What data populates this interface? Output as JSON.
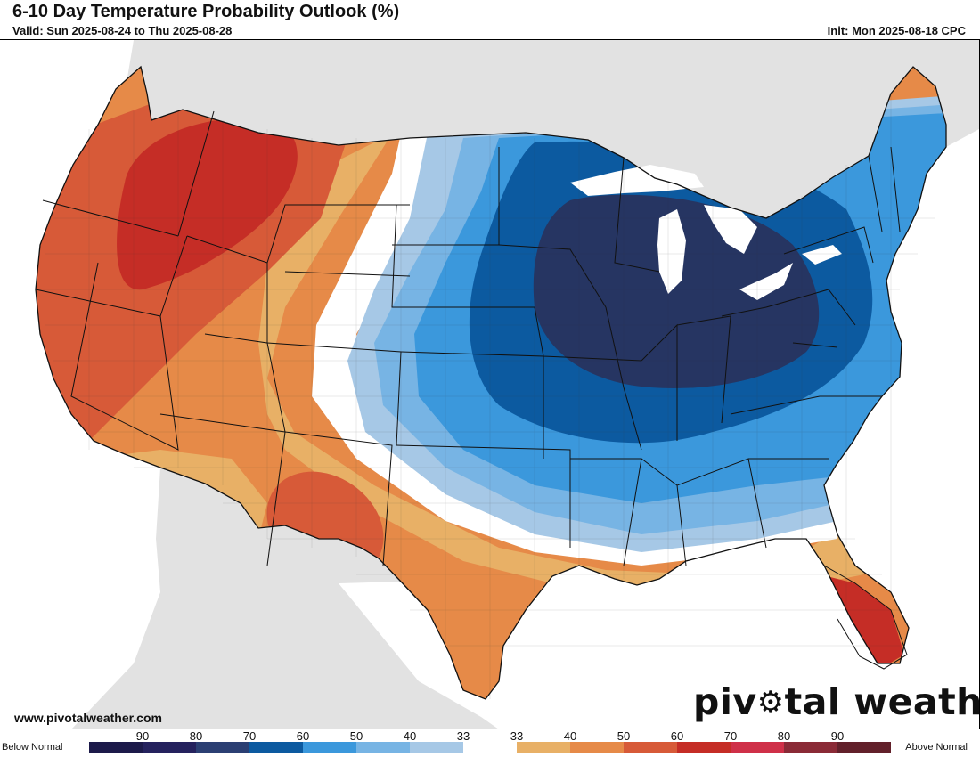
{
  "header": {
    "title": "6-10 Day Temperature Probability Outlook (%)",
    "valid": "Valid: Sun 2025-08-24 to Thu 2025-08-28",
    "init": "Init: Mon 2025-08-18 CPC"
  },
  "footer": {
    "website": "www.pivotalweather.com",
    "brand_left": "piv",
    "brand_right": "tal weather"
  },
  "legend": {
    "below_label": "Below Normal",
    "above_label": "Above Normal",
    "ticks": [
      "90",
      "80",
      "70",
      "60",
      "50",
      "40",
      "33",
      "33",
      "40",
      "50",
      "60",
      "70",
      "80",
      "90"
    ],
    "colors": [
      "#1c1a4a",
      "#25225e",
      "#2b3f73",
      "#0c5aa0",
      "#3b98dc",
      "#77b4e4",
      "#a6c8e6",
      "#ffffff",
      "#e8b066",
      "#e68a48",
      "#d75a38",
      "#c52d26",
      "#cf3048",
      "#8a2a36",
      "#62202a"
    ]
  },
  "map": {
    "colors": {
      "background": "#e2e2e2",
      "water": "#ffffff",
      "below_70": "#263562",
      "below_60": "#0c5aa0",
      "below_50": "#3b98dc",
      "below_40": "#77b4e4",
      "below_33": "#a6c8e6",
      "near_normal": "#ffffff",
      "above_33": "#e8b066",
      "above_40": "#e68a48",
      "above_50": "#d75a38",
      "above_60": "#c52d26",
      "border": "#111111"
    }
  }
}
